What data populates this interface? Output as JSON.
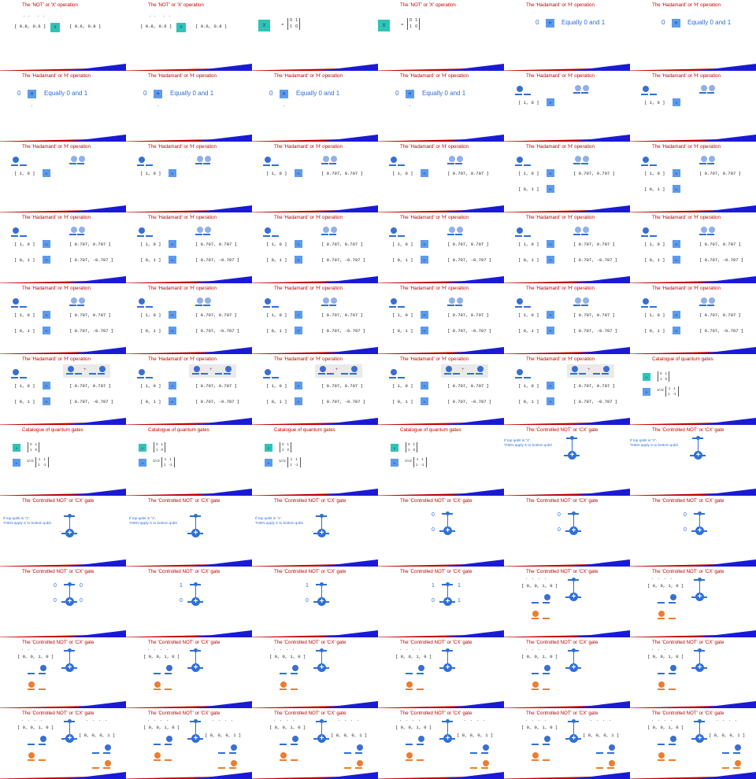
{
  "grid": {
    "columns": 6,
    "rows": 11
  },
  "colors": {
    "title": "#c00000",
    "band_red": "#c00000",
    "band_blue": "#1a1ad6",
    "accent_blue": "#2f6fd6",
    "x_gate": "#2ec4b6",
    "h_gate": "#5b9bf0",
    "orange": "#ed7d31"
  },
  "titles": {
    "not": "The 'NOT' or 'X' operation",
    "hadamard": "The 'Hadamard' or 'H' operation",
    "catalogue": "Catalogue of quantum gates",
    "cx": "The 'Controlled NOT' or 'CX' gate"
  },
  "labels": {
    "x_gate": "X",
    "h_gate": "H",
    "equally": "Equally 0 and 1",
    "zero": "0",
    "one": "1",
    "cx_note_line1": "If top qubit is \"1\",",
    "cx_note_line2": "THEN apply X to bottom qubit",
    "sqrt_half": "1/√2"
  },
  "vectors": {
    "v_in": "[ 0.8, 0.6 ]",
    "v_out": "[ 0.6, 0.8 ]",
    "ket0": "[ 1, 0 ]",
    "ket1": "[ 0, 1 ]",
    "plus": "[ 0.707, 0.707 ]",
    "minus": "[ 0.707, -0.707 ]",
    "four_in": "[ 0, 0, 1, 0 ]",
    "four_out": "[ 0, 0, 0, 1 ]"
  },
  "matrices": {
    "x": [
      [
        "0",
        "1"
      ],
      [
        "1",
        "0"
      ]
    ],
    "h": [
      [
        "1",
        "1"
      ],
      [
        "1",
        "-1"
      ]
    ]
  },
  "slides": [
    "not_a",
    "not_a",
    "not_b",
    "not_b",
    "h_equal_r",
    "h_equal_r",
    "h_equal",
    "h_equal",
    "h_equal",
    "h_equal",
    "h_v0",
    "h_v0",
    "h_v0",
    "h_v0",
    "h_v1",
    "h_v1",
    "h_v2",
    "h_v2",
    "h_v3",
    "h_v3",
    "h_v3",
    "h_v3",
    "h_v3",
    "h_v3",
    "h_v3",
    "h_v3",
    "h_v3",
    "h_v3",
    "h_v3",
    "h_v3",
    "h_v4",
    "h_v4",
    "h_v4",
    "h_v4",
    "h_v4",
    "cat",
    "cat",
    "cat",
    "cat",
    "cat",
    "cx_note_top",
    "cx_note_top",
    "cx_note",
    "cx_note",
    "cx_note",
    "cx_00",
    "cx_00",
    "cx_00",
    "cx_00o",
    "cx_10",
    "cx_10",
    "cx_11",
    "cx_vec",
    "cx_vec",
    "cx_vec",
    "cx_vec",
    "cx_vec",
    "cx_vec",
    "cx_vec",
    "cx_vec",
    "cx_vec_out",
    "cx_vec_out",
    "cx_vec_out",
    "cx_vec_out",
    "cx_vec_out",
    "cx_vec_out"
  ]
}
